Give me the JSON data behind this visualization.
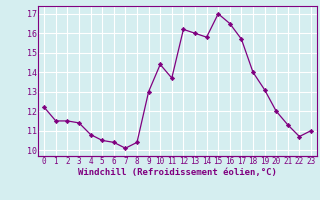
{
  "x": [
    0,
    1,
    2,
    3,
    4,
    5,
    6,
    7,
    8,
    9,
    10,
    11,
    12,
    13,
    14,
    15,
    16,
    17,
    18,
    19,
    20,
    21,
    22,
    23
  ],
  "y": [
    12.2,
    11.5,
    11.5,
    11.4,
    10.8,
    10.5,
    10.4,
    10.1,
    10.4,
    13.0,
    14.4,
    13.7,
    16.2,
    16.0,
    15.8,
    17.0,
    16.5,
    15.7,
    14.0,
    13.1,
    12.0,
    11.3,
    10.7,
    11.0
  ],
  "line_color": "#800080",
  "marker": "D",
  "marker_size": 2.2,
  "bg_color": "#d5eef0",
  "grid_color": "#ffffff",
  "xlabel": "Windchill (Refroidissement éolien,°C)",
  "xlabel_color": "#800080",
  "tick_color": "#800080",
  "ylim": [
    10,
    17
  ],
  "xlim": [
    0,
    23
  ],
  "yticks": [
    10,
    11,
    12,
    13,
    14,
    15,
    16,
    17
  ],
  "xticks": [
    0,
    1,
    2,
    3,
    4,
    5,
    6,
    7,
    8,
    9,
    10,
    11,
    12,
    13,
    14,
    15,
    16,
    17,
    18,
    19,
    20,
    21,
    22,
    23
  ],
  "tick_fontsize": 5.5,
  "xlabel_fontsize": 6.5,
  "spine_color": "#800080"
}
